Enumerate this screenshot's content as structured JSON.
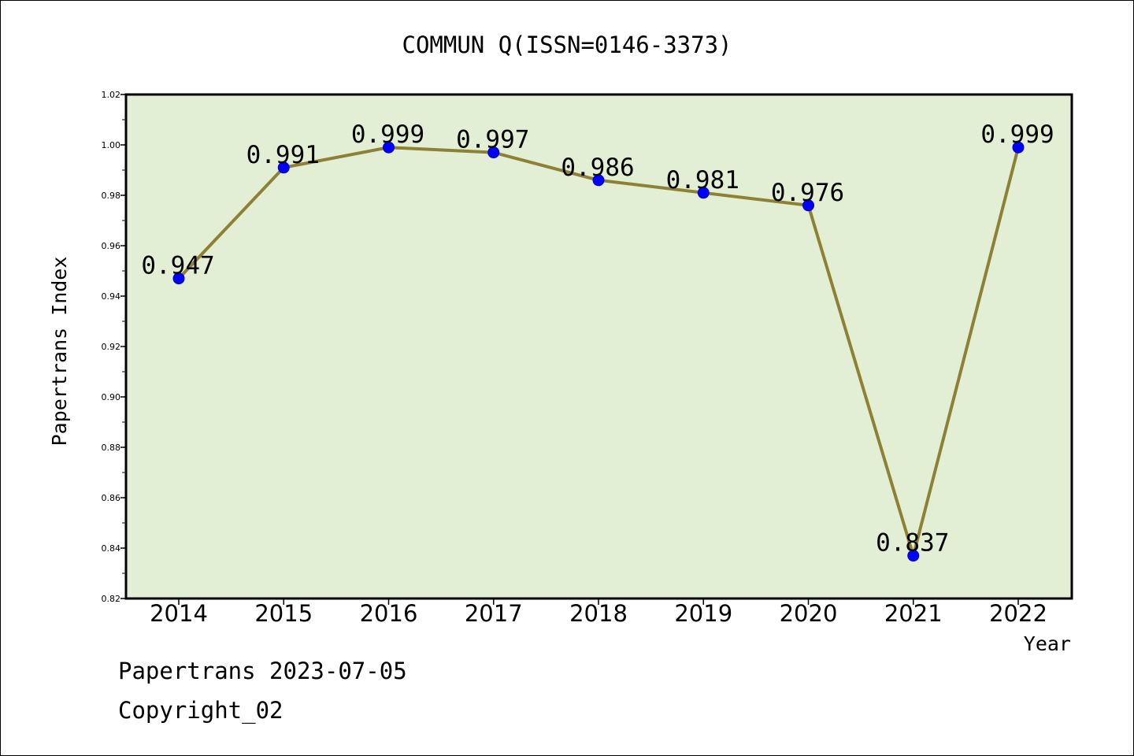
{
  "footer": {
    "line1": "Papertrans 2023-07-05",
    "line2": "Copyright_02"
  },
  "chart_data": {
    "type": "line",
    "title": "COMMUN Q(ISSN=0146-3373)",
    "xlabel": "Year",
    "ylabel": "Papertrans Index",
    "categories": [
      "2014",
      "2015",
      "2016",
      "2017",
      "2018",
      "2019",
      "2020",
      "2021",
      "2022"
    ],
    "series": [
      {
        "values": [
          0.947,
          0.991,
          0.999,
          0.997,
          0.986,
          0.981,
          0.976,
          0.837,
          0.999
        ],
        "labels": [
          "0.947",
          "0.991",
          "0.999",
          "0.997",
          "0.986",
          "0.981",
          "0.976",
          "0.837",
          "0.999"
        ]
      }
    ],
    "ylim": [
      0.82,
      1.02
    ],
    "yticks": [
      "0.82",
      "0.84",
      "0.86",
      "0.88",
      "0.90",
      "0.92",
      "0.94",
      "0.96",
      "0.98",
      "1.00",
      "1.02"
    ],
    "grid": false,
    "legend": "none",
    "colors": {
      "plot_background": "#e2efd5",
      "line": "#8e8035",
      "marker": "#0000ff"
    }
  }
}
